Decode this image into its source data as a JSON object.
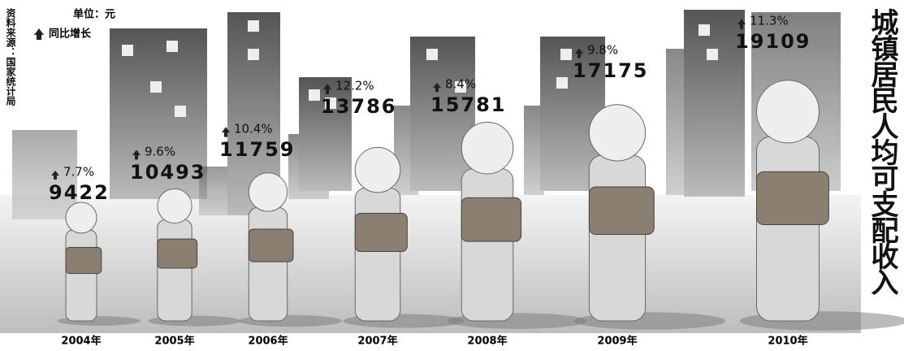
{
  "chart_data": {
    "type": "pictogram",
    "title": "城镇居民人均可支配收入",
    "unit": "单位：元",
    "source": "资料来源：国家统计局",
    "categories": [
      "2004年",
      "2005年",
      "2006年",
      "2007年",
      "2008年",
      "2009年",
      "2010年"
    ],
    "values": [
      9422,
      10493,
      11759,
      13786,
      15781,
      17175,
      19109
    ],
    "color": "#d8d8d8",
    "growth": {
      "name": "同比增长",
      "values": [
        7.7,
        9.6,
        10.4,
        12.2,
        8.4,
        9.8,
        11.3
      ],
      "value_labels": [
        "7.7%",
        "9.6%",
        "10.4%",
        "12.2%",
        "8.4%",
        "9.8%",
        "11.3%"
      ]
    }
  }
}
